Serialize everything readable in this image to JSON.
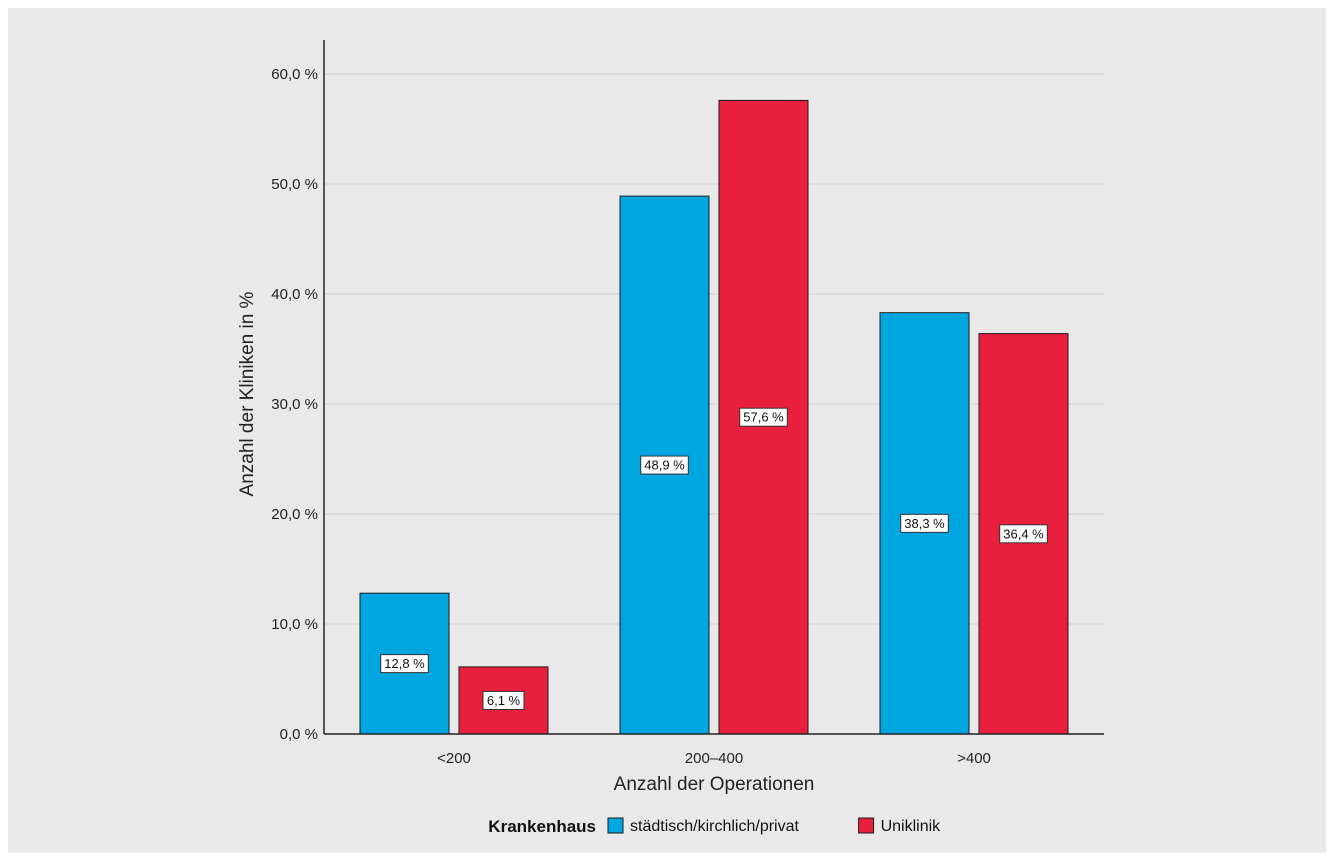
{
  "chart_data": {
    "type": "bar",
    "categories": [
      "<200",
      "200–400",
      ">400"
    ],
    "series": [
      {
        "name": "städtisch/kirchlich/privat",
        "color": "#00a6e0",
        "values": [
          12.8,
          48.9,
          38.3
        ],
        "labels": [
          "12,8 %",
          "48,9 %",
          "38,3 %"
        ]
      },
      {
        "name": "Uniklinik",
        "color": "#e8203e",
        "values": [
          6.1,
          57.6,
          36.4
        ],
        "labels": [
          "6,1 %",
          "57,6 %",
          "36,4 %"
        ]
      }
    ],
    "xlabel": "Anzahl der Operationen",
    "ylabel": "Anzahl der Kliniken in %",
    "ylim": [
      0,
      60
    ],
    "yticks": [
      0,
      10,
      20,
      30,
      40,
      50,
      60
    ],
    "ytick_labels": [
      "0,0 %",
      "10,0 %",
      "20,0 %",
      "30,0 %",
      "40,0 %",
      "50,0 %",
      "60,0 %"
    ],
    "grid": true,
    "legend": {
      "title": "Krankenhaus",
      "placement": "bottom"
    }
  }
}
